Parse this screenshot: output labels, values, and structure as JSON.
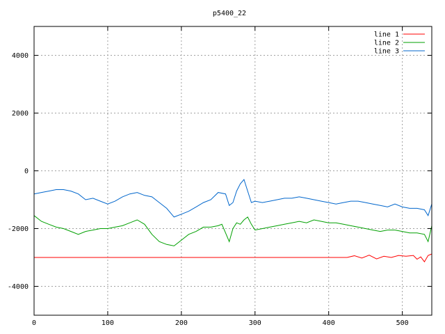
{
  "chart_data": {
    "type": "line",
    "title": "p5400_22",
    "xlabel": "",
    "ylabel": "",
    "xlim": [
      0,
      540
    ],
    "ylim": [
      -5000,
      5000
    ],
    "grid": true,
    "legend_position": "top-right",
    "xticks": [
      0,
      100,
      200,
      300,
      400,
      500
    ],
    "yticks": [
      -4000,
      -2000,
      0,
      2000,
      4000
    ],
    "series": [
      {
        "name": "line 1",
        "color": "#ff0000",
        "x": [
          0,
          50,
          100,
          150,
          200,
          250,
          300,
          350,
          400,
          425,
          435,
          445,
          455,
          465,
          475,
          485,
          495,
          505,
          515,
          520,
          525,
          530,
          535,
          540
        ],
        "y": [
          -3000,
          -3000,
          -3000,
          -3000,
          -3000,
          -3000,
          -3000,
          -3000,
          -3000,
          -3000,
          -2940,
          -3020,
          -2920,
          -3050,
          -2960,
          -3000,
          -2930,
          -2960,
          -2930,
          -3060,
          -2980,
          -3150,
          -2930,
          -2880
        ]
      },
      {
        "name": "line 2",
        "color": "#00a000",
        "x": [
          0,
          10,
          20,
          30,
          40,
          50,
          60,
          70,
          80,
          90,
          100,
          110,
          120,
          130,
          140,
          150,
          160,
          170,
          180,
          190,
          200,
          210,
          220,
          230,
          240,
          250,
          255,
          260,
          265,
          270,
          275,
          280,
          285,
          290,
          295,
          300,
          310,
          320,
          330,
          340,
          350,
          360,
          370,
          380,
          390,
          400,
          410,
          420,
          430,
          440,
          450,
          460,
          470,
          480,
          490,
          500,
          510,
          520,
          530,
          535,
          540
        ],
        "y": [
          -1550,
          -1750,
          -1850,
          -1950,
          -2000,
          -2100,
          -2200,
          -2100,
          -2050,
          -2000,
          -2000,
          -1950,
          -1900,
          -1800,
          -1700,
          -1850,
          -2200,
          -2450,
          -2550,
          -2600,
          -2400,
          -2200,
          -2100,
          -1950,
          -1950,
          -1900,
          -1850,
          -2150,
          -2450,
          -2000,
          -1800,
          -1850,
          -1700,
          -1600,
          -1850,
          -2050,
          -2000,
          -1950,
          -1900,
          -1850,
          -1800,
          -1750,
          -1800,
          -1700,
          -1750,
          -1800,
          -1800,
          -1850,
          -1900,
          -1950,
          -2000,
          -2050,
          -2100,
          -2050,
          -2050,
          -2100,
          -2150,
          -2150,
          -2200,
          -2450,
          -1900
        ]
      },
      {
        "name": "line 3",
        "color": "#0066cc",
        "x": [
          0,
          10,
          20,
          30,
          40,
          50,
          60,
          70,
          80,
          90,
          100,
          110,
          120,
          130,
          140,
          150,
          160,
          170,
          180,
          190,
          200,
          210,
          220,
          230,
          240,
          250,
          260,
          265,
          270,
          275,
          280,
          285,
          290,
          295,
          300,
          310,
          320,
          330,
          340,
          350,
          360,
          370,
          380,
          390,
          400,
          410,
          420,
          430,
          440,
          450,
          460,
          470,
          480,
          490,
          500,
          510,
          520,
          530,
          535,
          540
        ],
        "y": [
          -800,
          -750,
          -700,
          -650,
          -650,
          -700,
          -800,
          -1000,
          -950,
          -1050,
          -1150,
          -1050,
          -900,
          -800,
          -750,
          -850,
          -900,
          -1100,
          -1300,
          -1600,
          -1500,
          -1400,
          -1250,
          -1100,
          -1000,
          -750,
          -800,
          -1200,
          -1100,
          -700,
          -450,
          -300,
          -700,
          -1100,
          -1050,
          -1100,
          -1050,
          -1000,
          -950,
          -950,
          -900,
          -950,
          -1000,
          -1050,
          -1100,
          -1150,
          -1100,
          -1050,
          -1050,
          -1100,
          -1150,
          -1200,
          -1250,
          -1150,
          -1250,
          -1300,
          -1300,
          -1350,
          -1550,
          -1150
        ]
      }
    ]
  }
}
